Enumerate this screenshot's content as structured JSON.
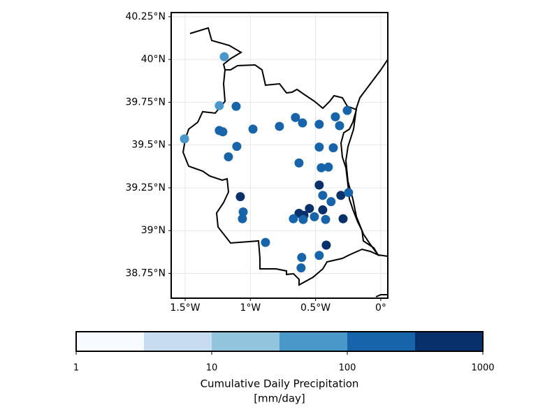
{
  "chart_data": {
    "type": "scatter",
    "x": [
      -1.2,
      -1.238,
      -1.109,
      -1.505,
      -1.238,
      -1.211,
      -0.98,
      -1.104,
      -1.168,
      -0.777,
      -0.654,
      -0.6,
      -0.472,
      -0.348,
      -0.257,
      -0.316,
      -0.472,
      -0.364,
      -0.627,
      -0.456,
      -0.402,
      -0.472,
      -1.077,
      -0.445,
      -0.381,
      -0.306,
      -0.247,
      -1.055,
      -1.061,
      -0.547,
      -0.627,
      -0.445,
      -0.589,
      -0.67,
      -0.595,
      -0.509,
      -0.423,
      -0.289,
      -0.884,
      -0.418,
      -0.606,
      -0.472,
      -0.611
    ],
    "y": [
      40.016,
      39.73,
      39.726,
      39.536,
      39.585,
      39.577,
      39.593,
      39.492,
      39.431,
      39.609,
      39.661,
      39.629,
      39.621,
      39.665,
      39.702,
      39.613,
      39.488,
      39.484,
      39.395,
      39.367,
      39.371,
      39.266,
      39.198,
      39.206,
      39.169,
      39.206,
      39.222,
      39.109,
      39.069,
      39.129,
      39.101,
      39.121,
      39.089,
      39.069,
      39.065,
      39.081,
      39.065,
      39.069,
      38.931,
      38.915,
      38.843,
      38.855,
      38.782
    ],
    "values": [
      60,
      60,
      150,
      60,
      150,
      150,
      150,
      150,
      150,
      150,
      150,
      150,
      150,
      150,
      150,
      150,
      150,
      150,
      150,
      150,
      150,
      500,
      500,
      150,
      150,
      500,
      150,
      150,
      150,
      500,
      500,
      500,
      500,
      150,
      150,
      150,
      150,
      500,
      150,
      500,
      150,
      150,
      150
    ],
    "xlim": [
      -1.607,
      0.054
    ],
    "ylim": [
      38.605,
      40.274
    ],
    "xticks": [
      {
        "value": -1.5,
        "label": "1.5°W"
      },
      {
        "value": -1,
        "label": "1°W"
      },
      {
        "value": -0.5,
        "label": "0.5°W"
      },
      {
        "value": 0,
        "label": "0°"
      }
    ],
    "yticks": [
      {
        "value": 40.25,
        "label": "40.25°N"
      },
      {
        "value": 40,
        "label": "40°N"
      },
      {
        "value": 39.75,
        "label": "39.75°N"
      },
      {
        "value": 39.5,
        "label": "39.5°N"
      },
      {
        "value": 39.25,
        "label": "39.25°N"
      },
      {
        "value": 39,
        "label": "39°N"
      },
      {
        "value": 38.75,
        "label": "38.75°N"
      }
    ],
    "grid": true,
    "colorbar": {
      "scale": "log",
      "lim": [
        1,
        1000
      ],
      "ticks": [
        1,
        10,
        100,
        1000
      ],
      "colors": [
        "#f7fbff",
        "#c8dcf0",
        "#93c4de",
        "#4a98c9",
        "#1864aa",
        "#08306b"
      ],
      "label": [
        "Cumulative Daily Precipitation",
        "[mm/day]"
      ]
    }
  }
}
